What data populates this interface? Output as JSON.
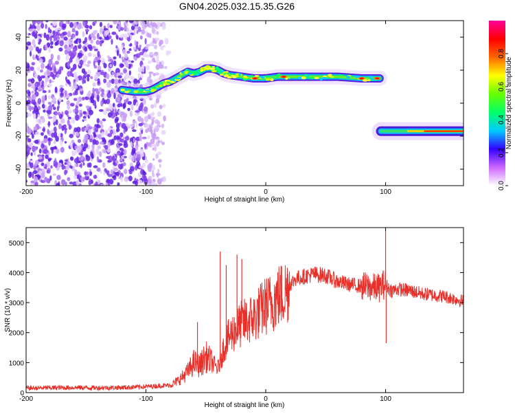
{
  "figure": {
    "title": "GN04.2025.032.15.35.G26"
  },
  "chart_data": [
    {
      "type": "heatmap",
      "xlabel": "Height of straight line (km)",
      "ylabel": "Frequency (Hz)",
      "xlim": [
        -200,
        165
      ],
      "ylim": [
        -50,
        50
      ],
      "x_ticks": [
        -200,
        -100,
        0,
        100
      ],
      "x_tick_labels": [
        "-200",
        "-100",
        "0",
        "100"
      ],
      "y_ticks": [
        -40,
        -20,
        0,
        20,
        40
      ],
      "y_tick_labels": [
        "-40",
        "-20",
        "0",
        "20",
        "40"
      ],
      "noise_region_x": [
        -200,
        -82
      ],
      "upper_trace": [
        {
          "x": -120,
          "y": 8
        },
        {
          "x": -110,
          "y": 7
        },
        {
          "x": -100,
          "y": 7
        },
        {
          "x": -95,
          "y": 8
        },
        {
          "x": -90,
          "y": 10
        },
        {
          "x": -85,
          "y": 12
        },
        {
          "x": -80,
          "y": 13
        },
        {
          "x": -75,
          "y": 15
        },
        {
          "x": -70,
          "y": 17
        },
        {
          "x": -65,
          "y": 19
        },
        {
          "x": -60,
          "y": 18
        },
        {
          "x": -55,
          "y": 19
        },
        {
          "x": -50,
          "y": 21
        },
        {
          "x": -45,
          "y": 21
        },
        {
          "x": -40,
          "y": 20
        },
        {
          "x": -35,
          "y": 18
        },
        {
          "x": -30,
          "y": 17
        },
        {
          "x": -20,
          "y": 16
        },
        {
          "x": -10,
          "y": 15
        },
        {
          "x": 0,
          "y": 15
        },
        {
          "x": 10,
          "y": 16
        },
        {
          "x": 20,
          "y": 16
        },
        {
          "x": 40,
          "y": 16
        },
        {
          "x": 60,
          "y": 16
        },
        {
          "x": 80,
          "y": 15
        },
        {
          "x": 95,
          "y": 15
        }
      ],
      "upper_trace_hot_spots": [
        -9,
        15,
        80,
        93
      ],
      "lower_trace": [
        {
          "x": 96,
          "y": -17
        },
        {
          "x": 110,
          "y": -17
        },
        {
          "x": 130,
          "y": -17
        },
        {
          "x": 150,
          "y": -17
        },
        {
          "x": 165,
          "y": -17
        }
      ],
      "colorbar": {
        "label": "Normalized spectral amplitude",
        "min": 0,
        "max": 1,
        "ticks": [
          "0.0",
          "0.2",
          "0.4",
          "0.6",
          "0.8"
        ],
        "colors": [
          "#ffffff",
          "#cc66ff",
          "#3300ff",
          "#00ccff",
          "#00ff66",
          "#66ff00",
          "#ffff00",
          "#ff6600",
          "#ff0000",
          "#ff0099"
        ]
      }
    },
    {
      "type": "line",
      "xlabel": "Height of straight line (km)",
      "ylabel": "SNR (10 * v/v)",
      "xlim": [
        -200,
        165
      ],
      "ylim": [
        0,
        5500
      ],
      "x_ticks": [
        -200,
        -100,
        0,
        100
      ],
      "x_tick_labels": [
        "-200",
        "-100",
        "0",
        "100"
      ],
      "y_ticks": [
        0,
        1000,
        2000,
        3000,
        4000,
        5000
      ],
      "y_tick_labels": [
        "0",
        "1000",
        "2000",
        "3000",
        "4000",
        "5000"
      ],
      "color": "#e8302a",
      "series": [
        {
          "x": [
            -200,
            -180,
            -160,
            -140,
            -120,
            -100,
            -90,
            -80,
            -75,
            -70,
            -65,
            -60,
            -55,
            -50,
            -45,
            -40,
            -35,
            -30,
            -25,
            -20,
            -15,
            -10,
            -5,
            0,
            5,
            10,
            15,
            20,
            25,
            30,
            35,
            40,
            50,
            60,
            70,
            80,
            90,
            95,
            98,
            100,
            102,
            105,
            110,
            120,
            130,
            140,
            150,
            160,
            165
          ],
          "y": [
            150,
            160,
            170,
            160,
            170,
            200,
            220,
            250,
            350,
            500,
            700,
            1000,
            900,
            1200,
            1000,
            800,
            1500,
            1900,
            2100,
            2300,
            2400,
            2500,
            2700,
            2900,
            3000,
            3200,
            3300,
            3600,
            3800,
            3850,
            3900,
            3950,
            3900,
            3700,
            3600,
            3550,
            3500,
            3500,
            3600,
            3600,
            3500,
            3400,
            3450,
            3400,
            3300,
            3250,
            3200,
            3100,
            3050
          ]
        }
      ],
      "spikes": [
        {
          "x": -57,
          "y": 2350
        },
        {
          "x": -38,
          "y": 4700
        },
        {
          "x": -33,
          "y": 4250
        },
        {
          "x": -24,
          "y": 4600
        },
        {
          "x": -20,
          "y": 4450
        },
        {
          "x": 100,
          "y": 5400
        },
        {
          "x": 100.5,
          "y": 1650
        }
      ]
    }
  ]
}
